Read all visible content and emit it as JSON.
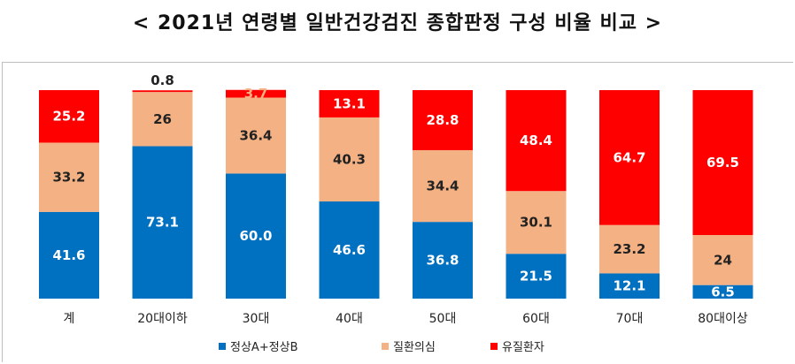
{
  "title": "< 2021년 연령별 일반건강검진 종합판정 구성 비율 비교 >",
  "chart_data": {
    "type": "bar",
    "stacked": true,
    "categories": [
      "계",
      "20대이하",
      "30대",
      "40대",
      "50대",
      "60대",
      "70대",
      "80대이상"
    ],
    "series": [
      {
        "name": "정상A+정상B",
        "color": "#0070C0",
        "label_color": "#ffffff",
        "values": [
          41.6,
          73.1,
          60.0,
          46.6,
          36.8,
          21.5,
          12.1,
          6.5
        ],
        "labels": [
          "41.6",
          "73.1",
          "60.0",
          "46.6",
          "36.8",
          "21.5",
          "12.1",
          "6.5"
        ]
      },
      {
        "name": "질환의심",
        "color": "#F4B183",
        "label_color": "#222222",
        "values": [
          33.2,
          26,
          36.4,
          40.3,
          34.4,
          30.1,
          23.2,
          24
        ],
        "labels": [
          "33.2",
          "26",
          "36.4",
          "40.3",
          "34.4",
          "30.1",
          "23.2",
          "24"
        ]
      },
      {
        "name": "유질환자",
        "color": "#FF0000",
        "label_color": "#ffffff",
        "values": [
          25.2,
          0.8,
          3.7,
          13.1,
          28.8,
          48.4,
          64.7,
          69.5
        ],
        "labels": [
          "25.2",
          "0.8",
          "3.7",
          "13.1",
          "28.8",
          "48.4",
          "64.7",
          "69.5"
        ]
      }
    ],
    "ylim": [
      0,
      100
    ],
    "grid": false,
    "legend_position": "bottom"
  }
}
